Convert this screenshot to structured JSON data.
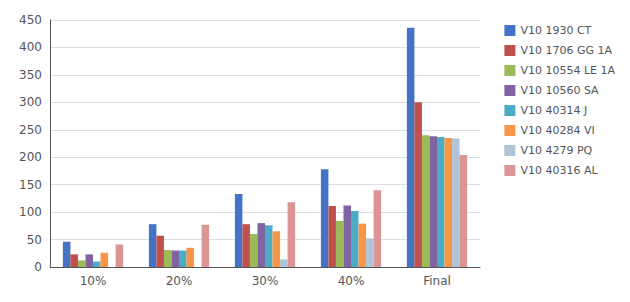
{
  "chart_data": {
    "type": "bar",
    "categories": [
      "10%",
      "20%",
      "30%",
      "40%",
      "Final"
    ],
    "series": [
      {
        "name": "V10 1930 CT",
        "color": "#4472C4",
        "values": [
          46,
          78,
          133,
          178,
          436
        ]
      },
      {
        "name": "V10 1706 GG 1A",
        "color": "#C0504D",
        "values": [
          23,
          57,
          78,
          111,
          300
        ]
      },
      {
        "name": "V10 10554 LE 1A",
        "color": "#9BBB59",
        "values": [
          12,
          31,
          60,
          84,
          240
        ]
      },
      {
        "name": "V10 10560 SA",
        "color": "#8064A2",
        "values": [
          23,
          30,
          80,
          112,
          238
        ]
      },
      {
        "name": "V10 40314 J",
        "color": "#4BACC6",
        "values": [
          10,
          30,
          76,
          102,
          237
        ]
      },
      {
        "name": "V10 40284 VI",
        "color": "#F79646",
        "values": [
          26,
          35,
          65,
          79,
          235
        ]
      },
      {
        "name": "V10 4279 PQ",
        "color": "#AFC4D6",
        "values": [
          0,
          0,
          14,
          52,
          234
        ]
      },
      {
        "name": "V10 40316 AL",
        "color": "#D99694",
        "values": [
          41,
          77,
          118,
          140,
          204
        ]
      }
    ],
    "ylim": [
      0,
      450
    ],
    "yticks": [
      0,
      50,
      100,
      150,
      200,
      250,
      300,
      350,
      400,
      450
    ],
    "grid": true,
    "legend": "upper right"
  }
}
